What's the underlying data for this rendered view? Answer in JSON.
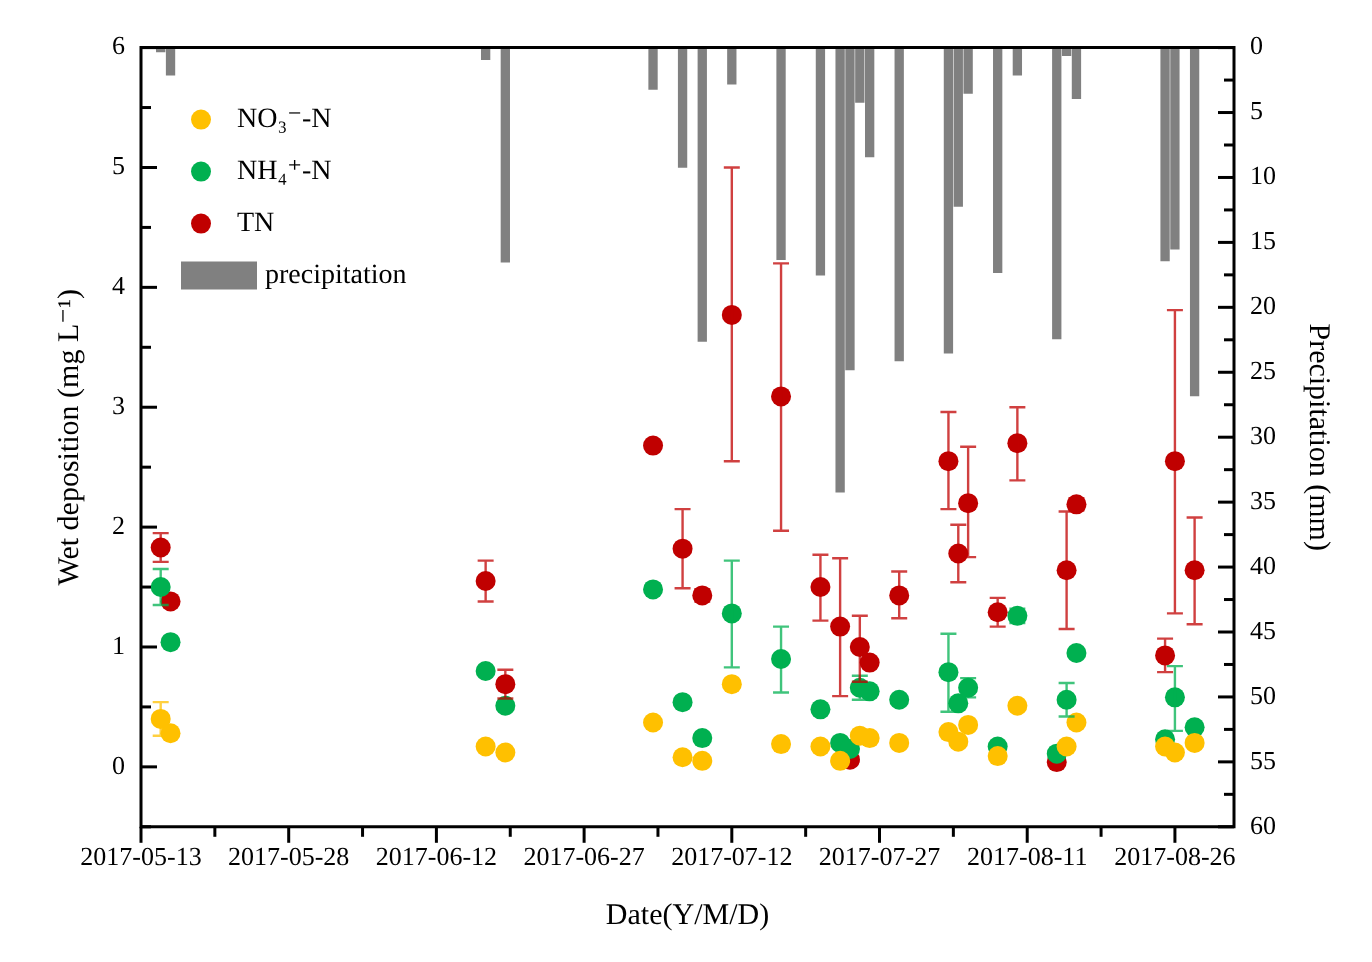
{
  "chart_data": {
    "type": "scatter",
    "xlabel": "Date(Y/M/D)",
    "ylabel": "Wet deposition (mg L⁻¹)",
    "y2label": "Precipitation (mm)",
    "xlim": [
      "2017-05-13",
      "2017-09-01"
    ],
    "xticks": [
      {
        "value": "2017-05-13",
        "label": "2017-05-13"
      },
      {
        "value": "2017-05-20T12:00",
        "label": null
      },
      {
        "value": "2017-05-28",
        "label": "2017-05-28"
      },
      {
        "value": "2017-06-04T12:00",
        "label": null
      },
      {
        "value": "2017-06-12",
        "label": "2017-06-12"
      },
      {
        "value": "2017-06-19T12:00",
        "label": null
      },
      {
        "value": "2017-06-27",
        "label": "2017-06-27"
      },
      {
        "value": "2017-07-04T12:00",
        "label": null
      },
      {
        "value": "2017-07-12",
        "label": "2017-07-12"
      },
      {
        "value": "2017-07-19T12:00",
        "label": null
      },
      {
        "value": "2017-07-27",
        "label": "2017-07-27"
      },
      {
        "value": "2017-08-03T12:00",
        "label": null
      },
      {
        "value": "2017-08-11",
        "label": "2017-08-11"
      },
      {
        "value": "2017-08-18T12:00",
        "label": null
      },
      {
        "value": "2017-08-26",
        "label": "2017-08-26"
      }
    ],
    "ylim": [
      -0.5,
      6
    ],
    "yticks": [
      {
        "value": -0.5,
        "label": null
      },
      0,
      {
        "value": 0.5,
        "label": null
      },
      1,
      {
        "value": 1.5,
        "label": null
      },
      2,
      {
        "value": 2.5,
        "label": null
      },
      3,
      {
        "value": 3.5,
        "label": null
      },
      4,
      {
        "value": 4.5,
        "label": null
      },
      5,
      {
        "value": 5.5,
        "label": null
      },
      6
    ],
    "y2lim": [
      60,
      0
    ],
    "y2ticks": [
      0,
      {
        "value": 2.5,
        "label": null
      },
      5,
      {
        "value": 7.5,
        "label": null
      },
      10,
      {
        "value": 12.5,
        "label": null
      },
      15,
      {
        "value": 17.5,
        "label": null
      },
      20,
      {
        "value": 22.5,
        "label": null
      },
      25,
      {
        "value": 27.5,
        "label": null
      },
      30,
      {
        "value": 32.5,
        "label": null
      },
      35,
      {
        "value": 37.5,
        "label": null
      },
      40,
      {
        "value": 42.5,
        "label": null
      },
      45,
      {
        "value": 47.5,
        "label": null
      },
      50,
      {
        "value": 52.5,
        "label": null
      },
      55,
      {
        "value": 57.5,
        "label": null
      },
      60
    ],
    "legend": "top left",
    "marker": "circle",
    "series": [
      {
        "name": "NO₃⁻-N",
        "color": "#ffc000",
        "x": [
          "2017-05-15",
          "2017-05-16",
          "2017-06-17",
          "2017-06-19",
          "2017-07-04",
          "2017-07-07",
          "2017-07-09",
          "2017-07-12",
          "2017-07-17",
          "2017-07-21",
          "2017-07-23",
          "2017-07-24",
          "2017-07-25",
          "2017-07-26",
          "2017-07-29",
          "2017-08-03",
          "2017-08-04",
          "2017-08-05",
          "2017-08-08",
          "2017-08-10",
          "2017-08-14",
          "2017-08-15",
          "2017-08-16",
          "2017-08-25",
          "2017-08-26",
          "2017-08-28"
        ],
        "values": [
          0.4,
          0.28,
          0.17,
          0.12,
          0.37,
          0.08,
          0.05,
          0.69,
          0.19,
          0.17,
          0.05,
          null,
          0.26,
          0.24,
          0.2,
          0.29,
          0.21,
          0.35,
          0.09,
          0.51,
          null,
          0.17,
          0.37,
          0.17,
          0.12,
          0.2
        ],
        "errors": [
          0.14,
          null,
          null,
          null,
          null,
          null,
          null,
          null,
          null,
          null,
          null,
          null,
          null,
          null,
          null,
          null,
          null,
          null,
          null,
          null,
          null,
          null,
          null,
          null,
          null,
          null
        ]
      },
      {
        "name": "NH₄⁺-N",
        "color": "#00b050",
        "x": [
          "2017-05-15",
          "2017-05-16",
          "2017-06-17",
          "2017-06-19",
          "2017-07-04",
          "2017-07-07",
          "2017-07-09",
          "2017-07-12",
          "2017-07-17",
          "2017-07-21",
          "2017-07-23",
          "2017-07-24",
          "2017-07-25",
          "2017-07-26",
          "2017-07-29",
          "2017-08-03",
          "2017-08-04",
          "2017-08-05",
          "2017-08-08",
          "2017-08-10",
          "2017-08-14",
          "2017-08-15",
          "2017-08-16",
          "2017-08-25",
          "2017-08-26",
          "2017-08-28"
        ],
        "values": [
          1.5,
          1.04,
          0.8,
          0.51,
          1.48,
          0.54,
          0.24,
          1.28,
          0.9,
          0.48,
          0.2,
          0.15,
          0.66,
          0.63,
          0.56,
          0.79,
          0.53,
          0.66,
          0.17,
          1.26,
          0.11,
          0.56,
          0.95,
          0.23,
          0.58,
          0.33
        ],
        "errors": [
          0.15,
          null,
          null,
          null,
          null,
          null,
          null,
          [
            0.83,
            1.72
          ],
          [
            0.62,
            1.17
          ],
          null,
          null,
          null,
          0.1,
          null,
          null,
          [
            0.46,
            1.11
          ],
          null,
          0.08,
          null,
          0.06,
          null,
          0.14,
          null,
          null,
          [
            0.3,
            0.84
          ],
          null
        ]
      },
      {
        "name": "TN",
        "color": "#c00000",
        "x": [
          "2017-05-15",
          "2017-05-16",
          "2017-06-17",
          "2017-06-19",
          "2017-07-04",
          "2017-07-07",
          "2017-07-09",
          "2017-07-12",
          "2017-07-17",
          "2017-07-21",
          "2017-07-23",
          "2017-07-24",
          "2017-07-25",
          "2017-07-26",
          "2017-07-29",
          "2017-08-03",
          "2017-08-04",
          "2017-08-05",
          "2017-08-08",
          "2017-08-10",
          "2017-08-14",
          "2017-08-15",
          "2017-08-16",
          "2017-08-25",
          "2017-08-26",
          "2017-08-28"
        ],
        "values": [
          1.83,
          1.38,
          1.55,
          0.69,
          2.68,
          1.82,
          1.43,
          3.77,
          3.09,
          1.5,
          1.17,
          0.06,
          1.0,
          0.87,
          1.43,
          2.55,
          1.78,
          2.2,
          1.29,
          2.7,
          0.04,
          1.64,
          2.19,
          0.93,
          2.55,
          1.64
        ],
        "errors": [
          0.12,
          null,
          0.17,
          0.12,
          null,
          [
            1.49,
            2.15
          ],
          0.05,
          [
            2.55,
            5.0
          ],
          [
            1.97,
            4.2
          ],
          [
            1.22,
            1.77
          ],
          [
            0.59,
            1.74
          ],
          null,
          [
            0.71,
            1.26
          ],
          null,
          [
            1.24,
            1.63
          ],
          [
            2.15,
            2.96
          ],
          [
            1.54,
            2.02
          ],
          [
            1.75,
            2.67
          ],
          0.12,
          [
            2.39,
            3.0
          ],
          null,
          [
            1.15,
            2.13
          ],
          0.05,
          0.14,
          [
            1.28,
            3.81
          ],
          [
            1.19,
            2.08
          ]
        ]
      },
      {
        "name": "precipitation",
        "type": "bar",
        "axis": "y2",
        "color": "#808080",
        "x": [
          "2017-05-15",
          "2017-05-16",
          "2017-06-17",
          "2017-06-19",
          "2017-07-04",
          "2017-07-07",
          "2017-07-09",
          "2017-07-12",
          "2017-07-17",
          "2017-07-21",
          "2017-07-23",
          "2017-07-24",
          "2017-07-25",
          "2017-07-26",
          "2017-07-29",
          "2017-08-03",
          "2017-08-04",
          "2017-08-05",
          "2017-08-08",
          "2017-08-10",
          "2017-08-14",
          "2017-08-15",
          "2017-08-16",
          "2017-08-25",
          "2017-08-26",
          "2017-08-28"
        ],
        "values": [
          0.3,
          2.1,
          0.9,
          16.5,
          3.2,
          9.2,
          22.6,
          2.8,
          16.3,
          17.5,
          34.2,
          24.8,
          4.2,
          8.4,
          24.1,
          23.5,
          12.2,
          3.5,
          17.3,
          2.1,
          22.4,
          0.6,
          3.9,
          16.4,
          15.5,
          26.8
        ]
      }
    ]
  }
}
